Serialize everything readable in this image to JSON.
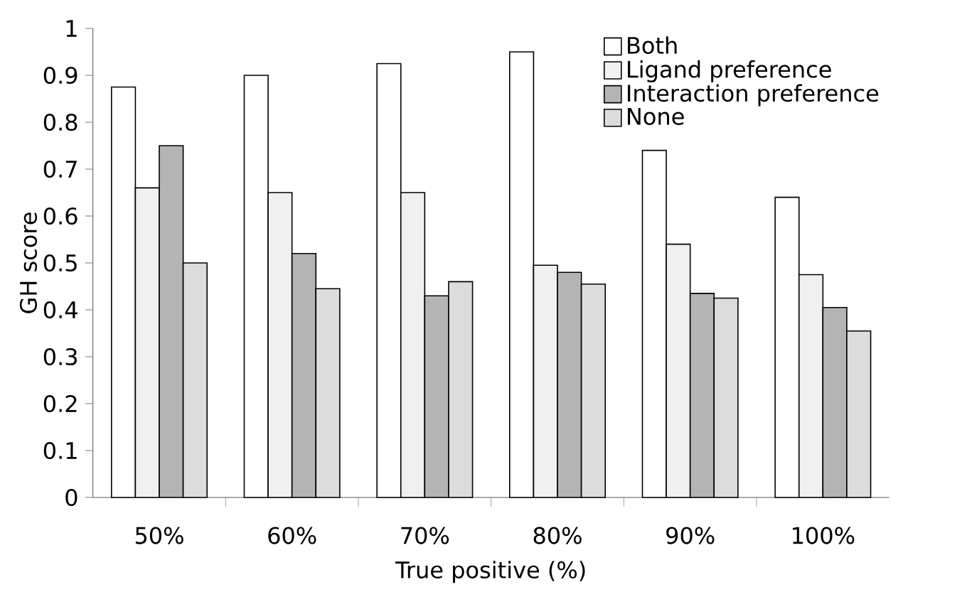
{
  "chart_data": {
    "type": "bar",
    "xlabel": "True positive (%)",
    "ylabel": "GH score",
    "categories": [
      "50%",
      "60%",
      "70%",
      "80%",
      "90%",
      "100%"
    ],
    "series": [
      {
        "name": "Both",
        "color": "#ffffff",
        "values": [
          0.875,
          0.9,
          0.925,
          0.95,
          0.74,
          0.64
        ]
      },
      {
        "name": "Ligand preference",
        "color": "#f0f0f0",
        "values": [
          0.66,
          0.65,
          0.65,
          0.495,
          0.54,
          0.475
        ]
      },
      {
        "name": "Interaction preference",
        "color": "#b4b4b4",
        "values": [
          0.75,
          0.52,
          0.43,
          0.48,
          0.435,
          0.405
        ]
      },
      {
        "name": "None",
        "color": "#dcdcdc",
        "values": [
          0.5,
          0.445,
          0.46,
          0.455,
          0.425,
          0.355
        ]
      }
    ],
    "ylim": [
      0,
      1
    ],
    "yticks": [
      0,
      0.1,
      0.2,
      0.3,
      0.4,
      0.5,
      0.6,
      0.7,
      0.8,
      0.9,
      1
    ],
    "legend": "top right"
  }
}
